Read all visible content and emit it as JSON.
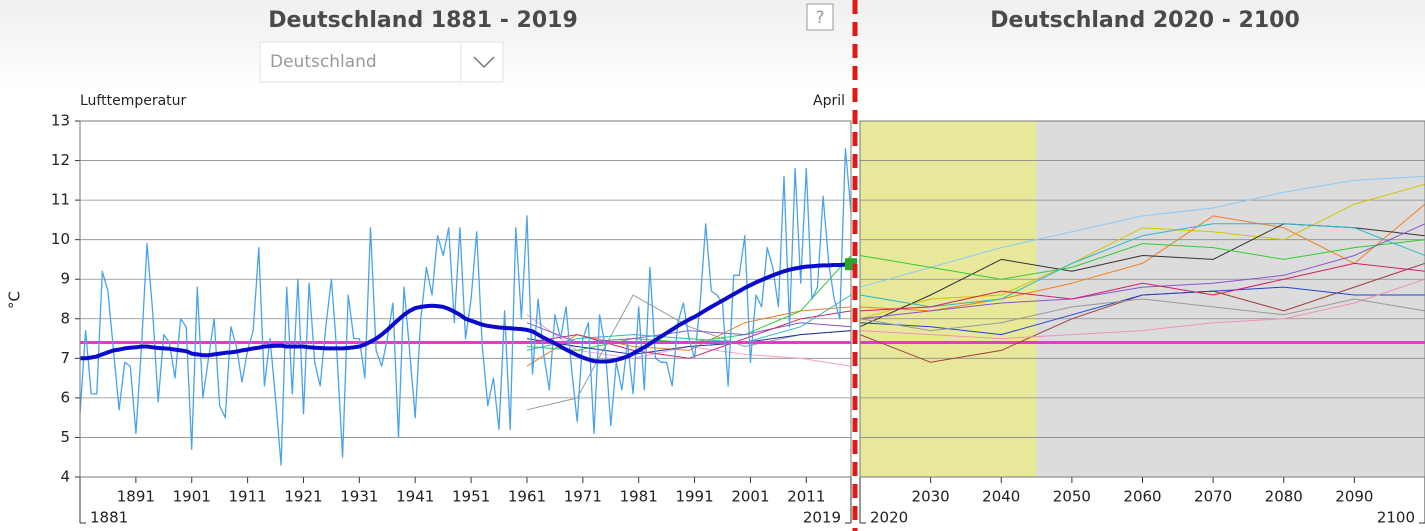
{
  "header": {
    "dropdown": "Deutschland",
    "help": "?"
  },
  "chart_data": [
    {
      "type": "line",
      "title": "Deutschland 1881 - 2019",
      "variable": "Lufttemperatur",
      "period": "April",
      "ylabel": "°C",
      "x": [
        1881,
        1882,
        1883,
        1884,
        1885,
        1886,
        1887,
        1888,
        1889,
        1890,
        1891,
        1892,
        1893,
        1894,
        1895,
        1896,
        1897,
        1898,
        1899,
        1900,
        1901,
        1902,
        1903,
        1904,
        1905,
        1906,
        1907,
        1908,
        1909,
        1910,
        1911,
        1912,
        1913,
        1914,
        1915,
        1916,
        1917,
        1918,
        1919,
        1920,
        1921,
        1922,
        1923,
        1924,
        1925,
        1926,
        1927,
        1928,
        1929,
        1930,
        1931,
        1932,
        1933,
        1934,
        1935,
        1936,
        1937,
        1938,
        1939,
        1940,
        1941,
        1942,
        1943,
        1944,
        1945,
        1946,
        1947,
        1948,
        1949,
        1950,
        1951,
        1952,
        1953,
        1954,
        1955,
        1956,
        1957,
        1958,
        1959,
        1960,
        1961,
        1962,
        1963,
        1964,
        1965,
        1966,
        1967,
        1968,
        1969,
        1970,
        1971,
        1972,
        1973,
        1974,
        1975,
        1976,
        1977,
        1978,
        1979,
        1980,
        1981,
        1982,
        1983,
        1984,
        1985,
        1986,
        1987,
        1988,
        1989,
        1990,
        1991,
        1992,
        1993,
        1994,
        1995,
        1996,
        1997,
        1998,
        1999,
        2000,
        2001,
        2002,
        2003,
        2004,
        2005,
        2006,
        2007,
        2008,
        2009,
        2010,
        2011,
        2012,
        2013,
        2014,
        2015,
        2016,
        2017,
        2018,
        2019
      ],
      "xlim": [
        1881,
        2019
      ],
      "xticks": [
        1881,
        1891,
        1901,
        1911,
        1921,
        1931,
        1941,
        1951,
        1961,
        1971,
        1981,
        1991,
        2001,
        2011,
        2019
      ],
      "ylim": [
        4,
        13
      ],
      "yticks": [
        4,
        5,
        6,
        7,
        8,
        9,
        10,
        11,
        12,
        13
      ],
      "grid": true,
      "hlines": [
        {
          "value": 7.4,
          "color": "#e03ccc"
        }
      ],
      "model_runs": {
        "x": [
          1961,
          1970,
          1980,
          1990,
          2000,
          2010,
          2019
        ],
        "series": [
          {
            "color": "#999999",
            "values": [
              5.7,
              6.0,
              8.6,
              7.8,
              7.3,
              7.6,
              7.7
            ]
          },
          {
            "color": "#f5a0cc",
            "values": [
              8.1,
              7.2,
              7.0,
              7.3,
              7.1,
              7.0,
              6.8
            ]
          },
          {
            "color": "#f07f20",
            "values": [
              6.8,
              7.6,
              7.3,
              7.2,
              7.9,
              8.2,
              8.3
            ]
          },
          {
            "color": "#33cc33",
            "values": [
              7.3,
              7.2,
              7.5,
              7.4,
              7.6,
              8.2,
              9.6
            ]
          },
          {
            "color": "#223399",
            "values": [
              7.5,
              7.3,
              7.1,
              7.3,
              7.4,
              7.6,
              7.7
            ]
          },
          {
            "color": "#8855cc",
            "values": [
              7.9,
              7.4,
              7.5,
              7.7,
              7.6,
              7.9,
              7.8
            ]
          },
          {
            "color": "#2ab8c8",
            "values": [
              7.2,
              7.5,
              7.6,
              7.5,
              7.4,
              7.8,
              8.6
            ]
          },
          {
            "color": "#d0206a",
            "values": [
              7.4,
              7.6,
              7.2,
              7.0,
              7.5,
              8.0,
              8.2
            ]
          }
        ]
      },
      "series": [
        {
          "color": "#4aa3ea",
          "line_width": 1.3,
          "values": [
            5.6,
            7.7,
            6.1,
            6.1,
            9.2,
            8.7,
            7.2,
            5.7,
            6.9,
            6.8,
            5.1,
            7.3,
            9.9,
            8.2,
            5.9,
            7.6,
            7.4,
            6.5,
            8.0,
            7.8,
            4.7,
            8.8,
            6.0,
            7.0,
            8.0,
            5.8,
            5.5,
            7.8,
            7.3,
            6.4,
            7.2,
            7.7,
            9.8,
            6.3,
            7.5,
            6.0,
            4.3,
            8.8,
            6.1,
            9.0,
            5.6,
            8.9,
            6.9,
            6.3,
            7.8,
            9.0,
            7.1,
            4.5,
            8.6,
            7.5,
            7.5,
            6.5,
            10.3,
            7.2,
            6.8,
            7.5,
            8.4,
            5.0,
            8.8,
            7.2,
            5.5,
            8.0,
            9.3,
            8.6,
            10.1,
            9.6,
            10.3,
            7.9,
            10.3,
            7.5,
            8.5,
            10.2,
            7.3,
            5.8,
            6.5,
            5.2,
            8.2,
            5.2,
            10.3,
            8.0,
            10.6,
            6.6,
            8.5,
            7.1,
            6.2,
            8.1,
            7.5,
            8.3,
            6.7,
            5.4,
            7.5,
            7.9,
            5.1,
            8.1,
            7.3,
            5.3,
            6.9,
            6.2,
            7.4,
            6.1,
            8.3,
            6.2,
            9.3,
            7.0,
            6.9,
            6.9,
            6.3,
            7.9,
            8.4,
            7.5,
            7.0,
            8.4,
            10.4,
            8.7,
            8.6,
            8.4,
            6.3,
            9.1,
            9.1,
            10.1,
            6.9,
            8.6,
            8.3,
            9.8,
            9.3,
            8.3,
            11.6,
            7.8,
            11.8,
            8.9,
            11.8,
            8.5,
            8.8,
            11.1,
            9.4,
            8.5,
            8.0,
            12.3,
            10.7
          ]
        },
        {
          "color": "#0a0acc",
          "line_width": 4,
          "values": [
            7.0,
            7.0,
            7.02,
            7.05,
            7.1,
            7.15,
            7.2,
            7.22,
            7.25,
            7.27,
            7.28,
            7.3,
            7.3,
            7.28,
            7.26,
            7.25,
            7.24,
            7.22,
            7.2,
            7.18,
            7.12,
            7.1,
            7.08,
            7.08,
            7.1,
            7.12,
            7.14,
            7.15,
            7.17,
            7.2,
            7.22,
            7.25,
            7.27,
            7.3,
            7.31,
            7.32,
            7.32,
            7.3,
            7.3,
            7.3,
            7.3,
            7.28,
            7.27,
            7.26,
            7.25,
            7.25,
            7.25,
            7.25,
            7.26,
            7.28,
            7.3,
            7.35,
            7.42,
            7.5,
            7.6,
            7.72,
            7.85,
            7.98,
            8.1,
            8.2,
            8.27,
            8.3,
            8.32,
            8.33,
            8.32,
            8.3,
            8.25,
            8.18,
            8.1,
            8.0,
            7.95,
            7.9,
            7.85,
            7.82,
            7.8,
            7.78,
            7.77,
            7.76,
            7.75,
            7.74,
            7.72,
            7.68,
            7.6,
            7.52,
            7.45,
            7.38,
            7.3,
            7.22,
            7.15,
            7.08,
            7.02,
            6.97,
            6.93,
            6.92,
            6.92,
            6.93,
            6.96,
            7.0,
            7.05,
            7.12,
            7.2,
            7.28,
            7.37,
            7.46,
            7.55,
            7.64,
            7.73,
            7.82,
            7.9,
            7.98,
            8.05,
            8.13,
            8.22,
            8.3,
            8.38,
            8.46,
            8.54,
            8.62,
            8.7,
            8.78,
            8.85,
            8.92,
            8.98,
            9.04,
            9.1,
            9.15,
            9.2,
            9.24,
            9.27,
            9.3,
            9.32,
            9.33,
            9.34,
            9.35,
            9.35,
            9.36,
            9.36,
            9.37,
            9.38
          ],
          "end_marker_color": "#22aa22"
        }
      ]
    },
    {
      "type": "line",
      "title": "Deutschland 2020 - 2100",
      "x": [
        2020,
        2030,
        2040,
        2050,
        2060,
        2070,
        2080,
        2090,
        2100
      ],
      "xlim": [
        2020,
        2100
      ],
      "xticks": [
        2020,
        2030,
        2040,
        2050,
        2060,
        2070,
        2080,
        2090,
        2100
      ],
      "ylim": [
        4,
        13
      ],
      "yticks": [
        4,
        5,
        6,
        7,
        8,
        9,
        10,
        11,
        12,
        13
      ],
      "grid": true,
      "bands": [
        {
          "from": 2020,
          "to": 2045,
          "color": "#e8e89a"
        },
        {
          "from": 2045,
          "to": 2100,
          "color": "#dcdcdc"
        }
      ],
      "hlines": [
        {
          "value": 7.4,
          "color": "#e03ccc"
        }
      ],
      "series": [
        {
          "color": "#8ec9f5",
          "values": [
            8.8,
            9.3,
            9.8,
            10.2,
            10.6,
            10.8,
            11.2,
            11.5,
            11.6
          ]
        },
        {
          "color": "#d4c400",
          "values": [
            8.0,
            8.5,
            8.6,
            9.4,
            10.3,
            10.2,
            10.0,
            10.9,
            11.4
          ]
        },
        {
          "color": "#f07f20",
          "values": [
            8.3,
            8.2,
            8.5,
            8.9,
            9.4,
            10.6,
            10.3,
            9.4,
            10.9
          ]
        },
        {
          "color": "#333333",
          "values": [
            7.8,
            8.6,
            9.5,
            9.2,
            9.6,
            9.5,
            10.4,
            10.3,
            10.1
          ]
        },
        {
          "color": "#33cc33",
          "values": [
            9.6,
            9.3,
            9.0,
            9.3,
            9.9,
            9.8,
            9.5,
            9.8,
            10.0
          ]
        },
        {
          "color": "#2ab8c8",
          "values": [
            8.6,
            8.3,
            8.5,
            9.4,
            10.1,
            10.4,
            10.4,
            10.3,
            9.6
          ]
        },
        {
          "color": "#8855cc",
          "values": [
            8.0,
            8.2,
            8.4,
            8.5,
            8.8,
            8.9,
            9.1,
            9.6,
            10.4
          ]
        },
        {
          "color": "#a04040",
          "values": [
            7.6,
            6.9,
            7.2,
            8.0,
            8.6,
            8.7,
            8.2,
            8.8,
            9.4
          ]
        },
        {
          "color": "#2244cc",
          "values": [
            7.9,
            7.8,
            7.6,
            8.1,
            8.6,
            8.7,
            8.8,
            8.6,
            8.6
          ]
        },
        {
          "color": "#f090c0",
          "values": [
            7.7,
            7.6,
            7.5,
            7.6,
            7.7,
            7.9,
            8.0,
            8.4,
            9.0
          ]
        },
        {
          "color": "#999999",
          "values": [
            8.0,
            7.7,
            7.9,
            8.3,
            8.5,
            8.3,
            8.1,
            8.5,
            8.2
          ]
        },
        {
          "color": "#d0206a",
          "values": [
            8.2,
            8.3,
            8.7,
            8.5,
            8.9,
            8.6,
            9.0,
            9.4,
            9.2
          ]
        }
      ]
    }
  ]
}
